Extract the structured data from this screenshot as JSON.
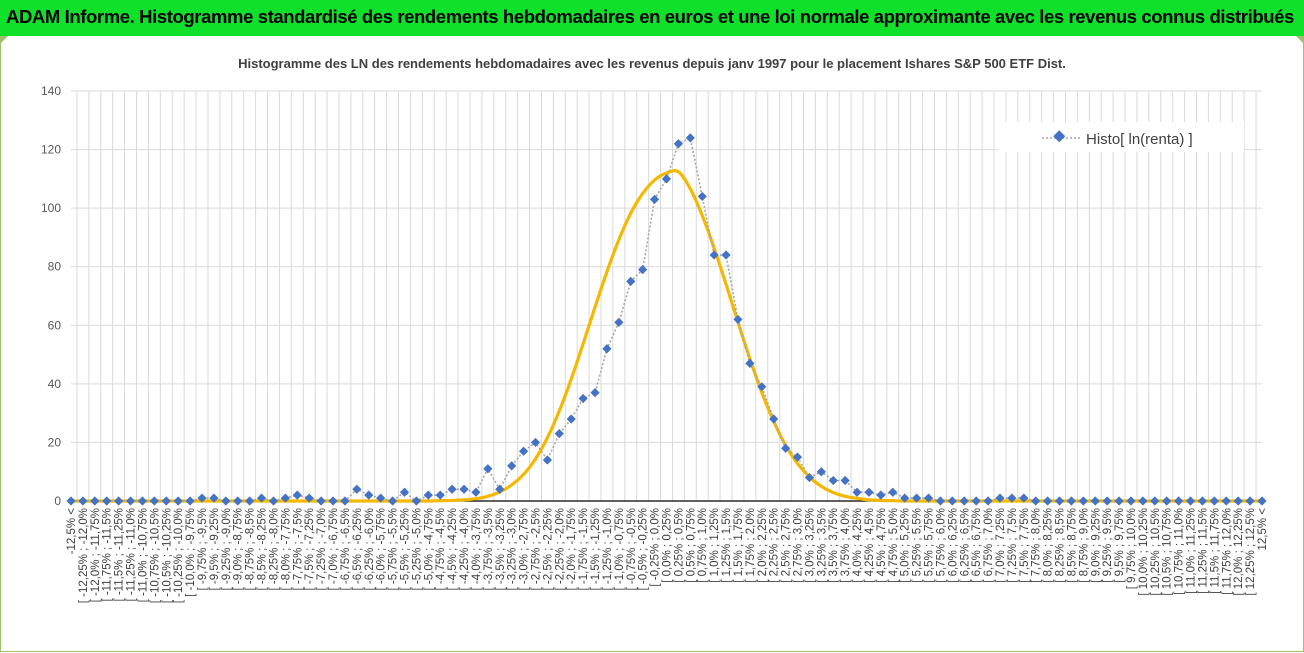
{
  "banner": {
    "title": "ADAM Informe. Histogramme standardisé des rendements hebdomadaires en euros et une loi normale approximante avec les revenus connus distribués"
  },
  "colors": {
    "banner_bg": "#0fe12a",
    "histogram": "#4472c4",
    "normal_curve": "#f5b800",
    "grid": "#d9d9d9"
  },
  "chart_data": {
    "type": "line",
    "title": "Histogramme  des LN des rendements hebdomadaires avec les revenus depuis janv 1997 pour le placement Ishares S&P 500 ETF Dist.",
    "xlabel": "",
    "ylabel": "",
    "ylim": [
      0,
      140
    ],
    "yticks": [
      0,
      20,
      40,
      60,
      80,
      100,
      120,
      140
    ],
    "grid": true,
    "legend_position": "top-right",
    "categories": [
      "-12,5% <",
      "[ -12,25% ; -12,0%",
      "[ -12,0% ; -11,75%",
      "[ -11,75% ; -11,5%",
      "[ -11,5% ; -11,25%",
      "[ -11,25% ; -11,0%",
      "[ -11,0% ; -10,75%",
      "[ -10,75% ; -10,5%",
      "[ -10,5% ; -10,25%",
      "[ -10,25% ; -10,0%",
      "[ -10,0% ; -9,75%",
      "[ -9,75% ; -9,5%",
      "[ -9,5% ; -9,25%",
      "[ -9,25% ; -9,0%",
      "[ -9,0% ; -8,75%",
      "[ -8,75% ; -8,5%",
      "[ -8,5% ; -8,25%",
      "[ -8,25% ; -8,0%",
      "[ -8,0% ; -7,75%",
      "[ -7,75% ; -7,5%",
      "[ -7,5% ; -7,25%",
      "[ -7,25% ; -7,0%",
      "[ -7,0% ; -6,75%",
      "[ -6,75% ; -6,5%",
      "[ -6,5% ; -6,25%",
      "[ -6,25% ; -6,0%",
      "[ -6,0% ; -5,75%",
      "[ -5,75% ; -5,5%",
      "[ -5,5% ; -5,25%",
      "[ -5,25% ; -5,0%",
      "[ -5,0% ; -4,75%",
      "[ -4,75% ; -4,5%",
      "[ -4,5% ; -4,25%",
      "[ -4,25% ; -4,0%",
      "[ -4,0% ; -3,75%",
      "[ -3,75% ; -3,5%",
      "[ -3,5% ; -3,25%",
      "[ -3,25% ; -3,0%",
      "[ -3,0% ; -2,75%",
      "[ -2,75% ; -2,5%",
      "[ -2,5% ; -2,25%",
      "[ -2,25% ; -2,0%",
      "[ -2,0% ; -1,75%",
      "[ -1,75% ; -1,5%",
      "[ -1,5% ; -1,25%",
      "[ -1,25% ; -1,0%",
      "[ -1,0% ; -0,75%",
      "[ -0,75% ; -0,5%",
      "[ -0,5% ; -0,25%",
      "[ -0,25% ; 0,0%",
      "[ 0,0% ; 0,25%",
      "[ 0,25% ; 0,5%",
      "[ 0,5% ; 0,75%",
      "[ 0,75% ; 1,0%",
      "[ 1,0% ; 1,25%",
      "[ 1,25% ; 1,5%",
      "[ 1,5% ; 1,75%",
      "[ 1,75% ; 2,0%",
      "[ 2,0% ; 2,25%",
      "[ 2,25% ; 2,5%",
      "[ 2,5% ; 2,75%",
      "[ 2,75% ; 3,0%",
      "[ 3,0% ; 3,25%",
      "[ 3,25% ; 3,5%",
      "[ 3,5% ; 3,75%",
      "[ 3,75% ; 4,0%",
      "[ 4,0% ; 4,25%",
      "[ 4,25% ; 4,5%",
      "[ 4,5% ; 4,75%",
      "[ 4,75% ; 5,0%",
      "[ 5,0% ; 5,25%",
      "[ 5,25% ; 5,5%",
      "[ 5,5% ; 5,75%",
      "[ 5,75% ; 6,0%",
      "[ 6,0% ; 6,25%",
      "[ 6,25% ; 6,5%",
      "[ 6,5% ; 6,75%",
      "[ 6,75% ; 7,0%",
      "[ 7,0% ; 7,25%",
      "[ 7,25% ; 7,5%",
      "[ 7,5% ; 7,75%",
      "[ 7,75% ; 8,0%",
      "[ 8,0% ; 8,25%",
      "[ 8,25% ; 8,5%",
      "[ 8,5% ; 8,75%",
      "[ 8,75% ; 9,0%",
      "[ 9,0% ; 9,25%",
      "[ 9,25% ; 9,5%",
      "[ 9,5% ; 9,75%",
      "[ 9,75% ; 10,0%",
      "[ 10,0% ; 10,25%",
      "[ 10,25% ; 10,5%",
      "[ 10,5% ; 10,75%",
      "[ 10,75% ; 11,0%",
      "[ 11,0% ; 11,25%",
      "[ 11,25% ; 11,5%",
      "[ 11,5% ; 11,75%",
      "[ 11,75% ; 12,0%",
      "[ 12,0% ; 12,25%",
      "[ 12,25% ; 12,5%",
      "12,5% <"
    ],
    "series": [
      {
        "name": "Histo[ ln(renta) ]",
        "style": "dotted line with diamond markers",
        "values": [
          0,
          0,
          0,
          0,
          0,
          0,
          0,
          0,
          0,
          0,
          0,
          1,
          1,
          0,
          0,
          0,
          1,
          0,
          1,
          2,
          1,
          0,
          0,
          0,
          4,
          2,
          1,
          0,
          3,
          0,
          2,
          2,
          4,
          4,
          3,
          11,
          4,
          12,
          17,
          20,
          14,
          23,
          28,
          35,
          37,
          52,
          61,
          75,
          79,
          103,
          110,
          122,
          124,
          104,
          84,
          84,
          62,
          47,
          39,
          28,
          18,
          15,
          8,
          10,
          7,
          7,
          3,
          3,
          2,
          3,
          1,
          1,
          1,
          0,
          0,
          0,
          0,
          0,
          1,
          1,
          1,
          0,
          0,
          0,
          0,
          0,
          0,
          0,
          0,
          0,
          0,
          0,
          0,
          0,
          0,
          0,
          0,
          0,
          0,
          0,
          0
        ]
      },
      {
        "style": "smooth line",
        "values": [
          0,
          0,
          0,
          0,
          0,
          0,
          0,
          0,
          0,
          0,
          0,
          0,
          0,
          0,
          0,
          0,
          0,
          0,
          0,
          0,
          0,
          0,
          0,
          0,
          0,
          0,
          0,
          0,
          0,
          0,
          0,
          0.1,
          0.2,
          0.4,
          0.8,
          1.6,
          3.1,
          5.5,
          9.1,
          14.4,
          21.6,
          30.8,
          41.6,
          53.7,
          66.2,
          78.3,
          89.2,
          98.3,
          105.0,
          109.6,
          112.0,
          112.4,
          106.6,
          97.5,
          86.4,
          74.0,
          61.1,
          48.6,
          37.1,
          27.2,
          19.0,
          12.8,
          8.2,
          5.0,
          2.9,
          1.6,
          0.9,
          0.4,
          0.2,
          0.1,
          0,
          0,
          0,
          0,
          0,
          0,
          0,
          0,
          0,
          0,
          0,
          0,
          0,
          0,
          0,
          0,
          0,
          0,
          0,
          0,
          0,
          0,
          0,
          0,
          0,
          0,
          0,
          0,
          0,
          0,
          0
        ]
      }
    ]
  }
}
